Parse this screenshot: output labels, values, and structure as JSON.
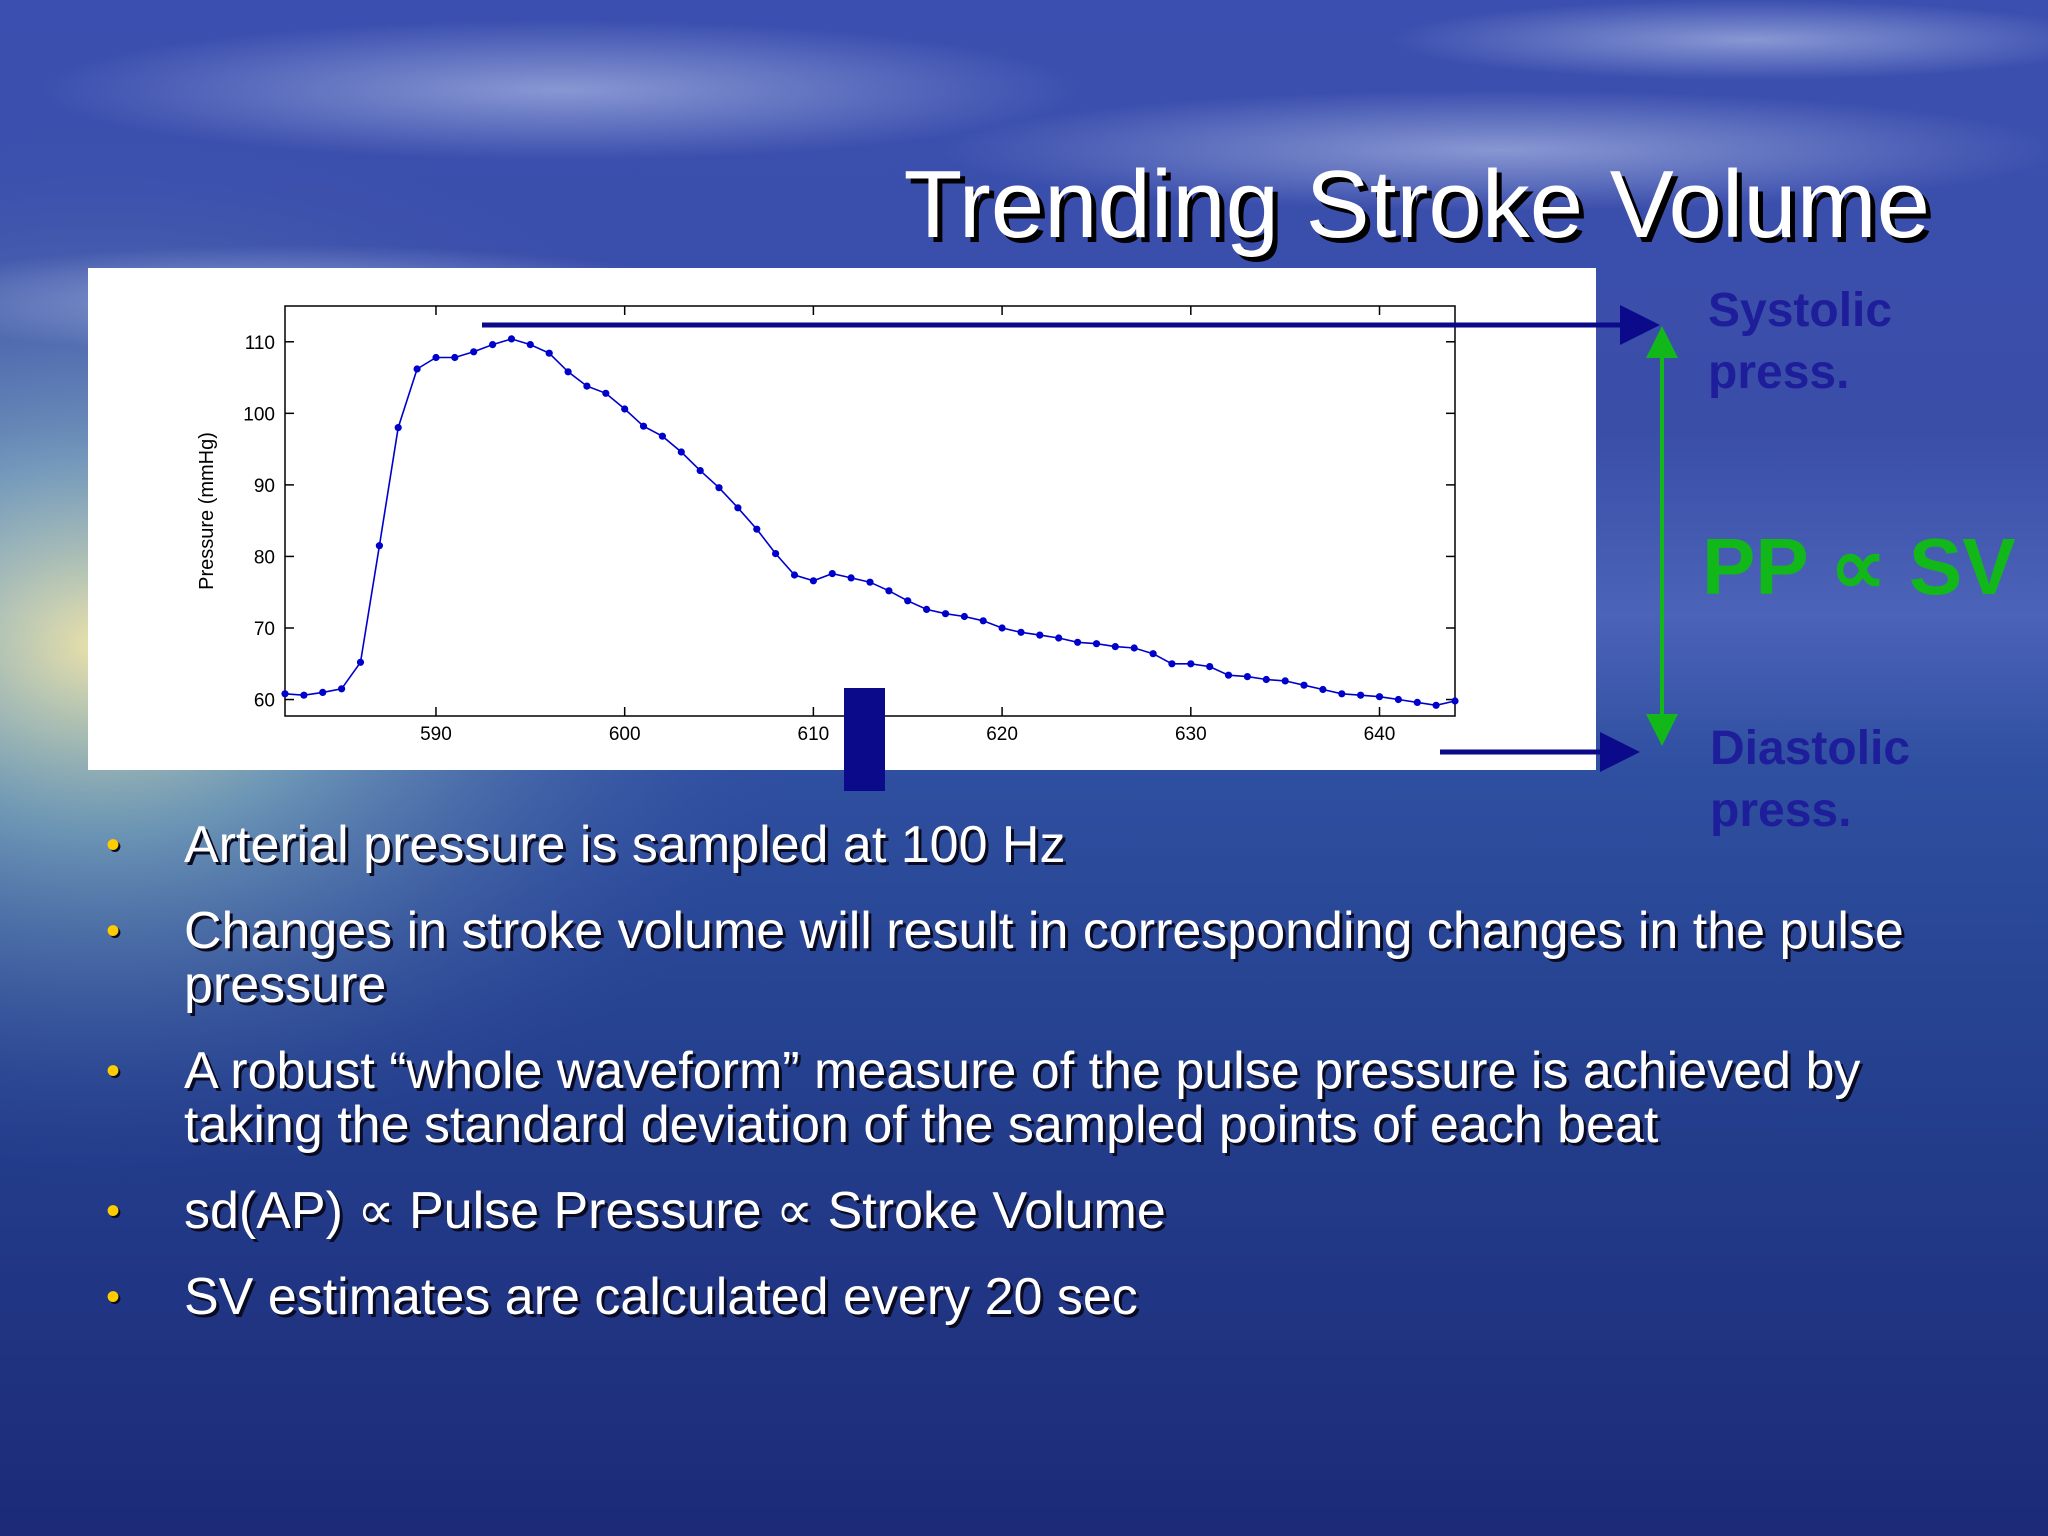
{
  "slide": {
    "title": "Trending Stroke Volume",
    "labels": {
      "systolic": "Systolic press.",
      "diastolic": "Diastolic press.",
      "pp_sv": "PP ∝ SV"
    },
    "bullets": [
      "Arterial pressure is sampled at 100 Hz",
      "Changes in stroke volume will result in corresponding changes in the pulse pressure",
      "A robust “whole waveform” measure of the pulse pressure is achieved by taking the standard deviation of the sampled points of each beat",
      "sd(AP) ∝ Pulse Pressure ∝ Stroke Volume",
      "SV estimates are calculated every 20 sec"
    ],
    "colors": {
      "title": "#ffffff",
      "bullet_text": "#ffffff",
      "bullet_marker": "#ffcc00",
      "label_blue": "#1e1e9a",
      "arrow_blue": "#0a0a8a",
      "pp_green": "#12b81a",
      "line": "#0000cc"
    },
    "icons": {
      "bullet_marker": "bullet-dot-icon"
    }
  },
  "chart_data": {
    "type": "line",
    "title": "",
    "xlabel": "",
    "ylabel": "Pressure (mmHg)",
    "xlim": [
      582,
      644
    ],
    "ylim": [
      57.7,
      115
    ],
    "xticks": [
      590,
      600,
      610,
      620,
      630,
      640
    ],
    "yticks": [
      60,
      70,
      80,
      90,
      100,
      110
    ],
    "grid": false,
    "series": [
      {
        "x": [
          582,
          583,
          584,
          585,
          586,
          587,
          588,
          589,
          590,
          591,
          592,
          593,
          594,
          595,
          596,
          597,
          598,
          599,
          600,
          601,
          602,
          603,
          604,
          605,
          606,
          607,
          608,
          609,
          610,
          611,
          612,
          613,
          614,
          615,
          616,
          617,
          618,
          619,
          620,
          621,
          622,
          623,
          624,
          625,
          626,
          627,
          628,
          629,
          630,
          631,
          632,
          633,
          634,
          635,
          636,
          637,
          638,
          639,
          640,
          641,
          642,
          643,
          644
        ],
        "y": [
          60.8,
          60.6,
          61.0,
          61.5,
          65.2,
          81.5,
          98.0,
          106.2,
          107.8,
          107.8,
          108.6,
          109.6,
          110.4,
          109.6,
          108.4,
          105.8,
          103.8,
          102.8,
          100.6,
          98.2,
          96.8,
          94.6,
          92.0,
          89.6,
          86.8,
          83.8,
          80.4,
          77.4,
          76.6,
          77.6,
          77.0,
          76.4,
          75.2,
          73.8,
          72.6,
          72.0,
          71.6,
          71.0,
          70.0,
          69.4,
          69.0,
          68.6,
          68.0,
          67.8,
          67.4,
          67.2,
          66.4,
          65.0,
          65.0,
          64.6,
          63.4,
          63.2,
          62.8,
          62.6,
          62.0,
          61.4,
          60.8,
          60.6,
          60.4,
          60.0,
          59.6,
          59.2,
          59.8
        ]
      }
    ]
  }
}
